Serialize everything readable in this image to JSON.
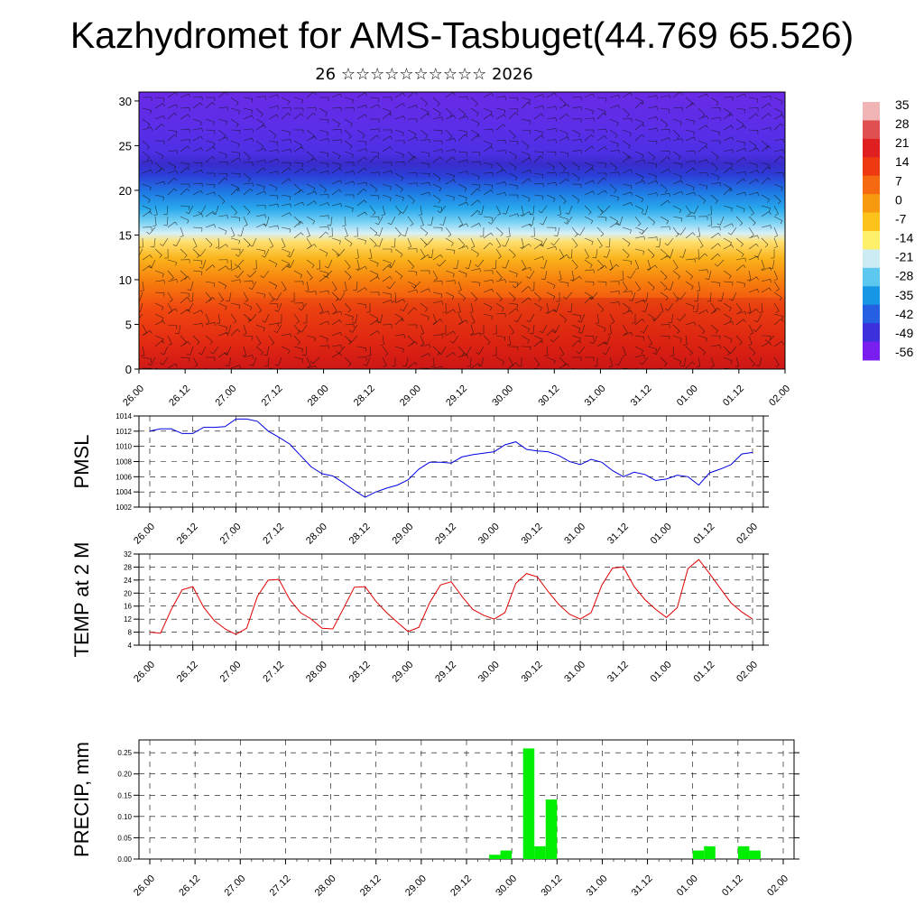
{
  "title": "Kazhydromet for AMS-Tasbuget(44.769 65.526)",
  "subtitle": "26 ☆☆☆☆☆☆☆☆☆☆ 2026",
  "time_labels": [
    "26.00",
    "26.12",
    "27.00",
    "27.12",
    "28.00",
    "28.12",
    "29.00",
    "29.12",
    "30.00",
    "30.12",
    "31.00",
    "31.12",
    "01.00",
    "01.12",
    "02.00"
  ],
  "chart_data": [
    {
      "type": "heatmap",
      "name": "cross-section",
      "ylabel": "",
      "y_ticks": [
        0,
        5,
        10,
        15,
        20,
        25,
        30
      ],
      "ylim": [
        0,
        31
      ],
      "colorbar": {
        "labels": [
          "35",
          "28",
          "21",
          "14",
          "7",
          "0",
          "-7",
          "-14",
          "-21",
          "-28",
          "-35",
          "-42",
          "-49",
          "-56"
        ],
        "colors": [
          "#f2b5b5",
          "#e05050",
          "#e02020",
          "#ee3a10",
          "#f56a10",
          "#f89a10",
          "#fcc41a",
          "#fff06c",
          "#ccecf4",
          "#5cc8f0",
          "#1896e6",
          "#2660e2",
          "#3c30dc",
          "#7a1ef0"
        ]
      },
      "temperature_bands": [
        {
          "y_from": 0,
          "y_to": 4,
          "value": 28
        },
        {
          "y_from": 4,
          "y_to": 8,
          "value": 20
        },
        {
          "y_from": 8,
          "y_to": 11,
          "value": 12
        },
        {
          "y_from": 11,
          "y_to": 13.5,
          "value": 4
        },
        {
          "y_from": 13.5,
          "y_to": 15.5,
          "value": -8
        },
        {
          "y_from": 15.5,
          "y_to": 17,
          "value": -20
        },
        {
          "y_from": 17,
          "y_to": 19,
          "value": -32
        },
        {
          "y_from": 19,
          "y_to": 21,
          "value": -42
        },
        {
          "y_from": 21,
          "y_to": 23,
          "value": -52
        },
        {
          "y_from": 23,
          "y_to": 27,
          "value": -60
        },
        {
          "y_from": 27,
          "y_to": 31,
          "value": -54
        }
      ]
    },
    {
      "type": "line",
      "name": "PMSL",
      "ylabel": "PMSL",
      "ylim": [
        1002,
        1014
      ],
      "y_ticks": [
        1002,
        1004,
        1006,
        1008,
        1010,
        1012,
        1014
      ],
      "color": "#0000e0",
      "x": [
        0,
        3,
        6,
        9,
        12,
        15,
        18,
        21,
        24,
        27,
        30,
        33,
        36,
        39,
        42,
        45,
        48,
        51,
        54,
        57,
        60,
        63,
        66,
        69,
        72,
        75,
        78,
        81,
        84,
        87,
        90,
        93,
        96,
        99,
        102,
        105,
        108,
        111,
        114,
        117,
        120,
        123,
        126,
        129,
        132,
        135,
        138,
        141,
        144,
        147,
        150,
        153,
        156,
        159,
        162,
        165,
        168
      ],
      "values": [
        1012.0,
        1012.3,
        1012.3,
        1011.7,
        1011.7,
        1012.5,
        1012.5,
        1012.6,
        1013.6,
        1013.6,
        1013.3,
        1012.0,
        1011.2,
        1010.3,
        1008.8,
        1007.3,
        1006.4,
        1006.1,
        1005.2,
        1004.2,
        1003.3,
        1004.0,
        1004.5,
        1004.9,
        1005.6,
        1007.0,
        1007.9,
        1007.9,
        1007.8,
        1008.6,
        1008.9,
        1009.1,
        1009.3,
        1010.2,
        1010.6,
        1009.6,
        1009.4,
        1009.3,
        1008.8,
        1008.0,
        1007.6,
        1008.3,
        1007.9,
        1006.8,
        1006.0,
        1006.6,
        1006.3,
        1005.5,
        1005.7,
        1006.2,
        1006.0,
        1004.9,
        1006.5,
        1007.0,
        1007.6,
        1009.0,
        1009.2
      ]
    },
    {
      "type": "line",
      "name": "TEMP at 2 M",
      "ylabel": "TEMP at 2 M",
      "ylim": [
        4,
        32
      ],
      "y_ticks": [
        4,
        8,
        12,
        16,
        20,
        24,
        28,
        32
      ],
      "color": "#e00000",
      "x": [
        0,
        3,
        6,
        9,
        12,
        15,
        18,
        21,
        24,
        27,
        30,
        33,
        36,
        39,
        42,
        45,
        48,
        51,
        54,
        57,
        60,
        63,
        66,
        69,
        72,
        75,
        78,
        81,
        84,
        87,
        90,
        93,
        96,
        99,
        102,
        105,
        108,
        111,
        114,
        117,
        120,
        123,
        126,
        129,
        132,
        135,
        138,
        141,
        144,
        147,
        150,
        153,
        156,
        159,
        162,
        165,
        168
      ],
      "values": [
        8.0,
        7.7,
        15.0,
        21.0,
        22.0,
        15.7,
        11.5,
        9.0,
        7.3,
        9.2,
        19.0,
        24.0,
        24.2,
        18.0,
        14.0,
        12.0,
        9.2,
        9.0,
        15.3,
        21.8,
        22.0,
        17.5,
        14.0,
        11.0,
        8.2,
        9.5,
        17.0,
        22.5,
        23.5,
        19.0,
        15.0,
        13.2,
        12.0,
        14.0,
        23.0,
        26.0,
        25.0,
        20.5,
        16.5,
        13.5,
        12.0,
        14.0,
        22.5,
        27.7,
        28.0,
        22.0,
        18.0,
        15.0,
        12.5,
        15.5,
        27.5,
        30.3,
        26.0,
        21.5,
        17.0,
        14.2,
        12.0
      ]
    },
    {
      "type": "bar",
      "name": "PRECIP, mm",
      "ylabel": "PRECIP, mm",
      "ylim": [
        0,
        0.28
      ],
      "y_ticks": [
        "0.00",
        "0.05",
        "0.10",
        "0.15",
        "0.20",
        "0.25"
      ],
      "color": "#00ee00",
      "x": [
        93,
        96,
        102,
        105,
        108,
        147,
        150,
        159,
        162
      ],
      "values": [
        0.01,
        0.02,
        0.26,
        0.03,
        0.14,
        0.02,
        0.03,
        0.03,
        0.02
      ]
    }
  ]
}
